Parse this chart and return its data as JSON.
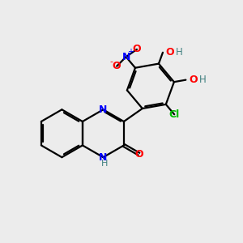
{
  "bg_color": "#ececec",
  "bond_color": "#000000",
  "N_color": "#0000ff",
  "O_color": "#ff0000",
  "Cl_color": "#00bb00",
  "H_color": "#408080",
  "line_width": 1.6,
  "dbo": 0.055,
  "figsize": [
    3.0,
    3.0
  ],
  "dpi": 100,
  "xlim": [
    0,
    10
  ],
  "ylim": [
    0,
    10
  ]
}
